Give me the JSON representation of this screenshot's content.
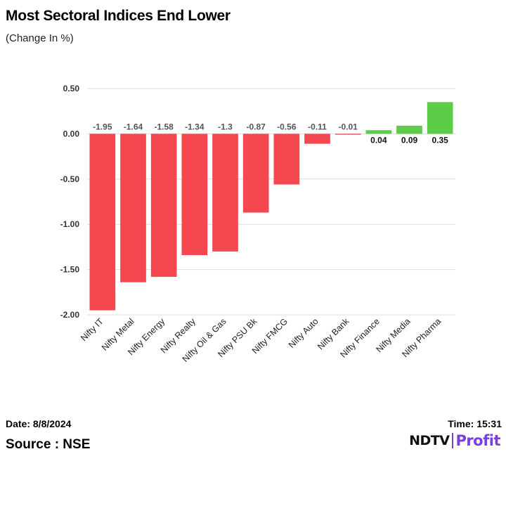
{
  "title": "Most Sectoral Indices End Lower",
  "subtitle": "(Change In %)",
  "footer": {
    "date": "Date: 8/8/2024",
    "time": "Time: 15:31",
    "source": "Source : NSE"
  },
  "logo": {
    "part1": "NDTV",
    "part2": "Profit"
  },
  "colors": {
    "negative": "#f5474f",
    "positive": "#5bcd48",
    "grid": "#dddddd",
    "accent": "#7b3fe0"
  },
  "chart_data": {
    "type": "bar",
    "title": "Most Sectoral Indices End Lower",
    "ylabel": "(Change In %)",
    "xlabel": "",
    "categories": [
      "Nifty IT",
      "Nifty Metal",
      "Nifty Energy",
      "Nifty Realty",
      "Nifty Oil & Gas",
      "Nifty PSU Bk",
      "Nifty FMCG",
      "Nifty Auto",
      "Nifty Bank",
      "Nifty Finance",
      "Nifty Media",
      "Nifty Pharma"
    ],
    "values": [
      -1.95,
      -1.64,
      -1.58,
      -1.34,
      -1.3,
      -0.87,
      -0.56,
      -0.11,
      -0.01,
      0.04,
      0.09,
      0.35
    ],
    "value_labels": [
      "-1.95",
      "-1.64",
      "-1.58",
      "-1.34",
      "-1.3",
      "-0.87",
      "-0.56",
      "-0.11",
      "-0.01",
      "0.04",
      "0.09",
      "0.35"
    ],
    "yticks": [
      0.5,
      0,
      -0.5,
      -1,
      -1.5,
      -2
    ],
    "ytick_labels": [
      "0.50",
      "0.00",
      "-0.50",
      "-1.00",
      "-1.50",
      "-2.00"
    ],
    "ylim": [
      -2.0,
      0.5
    ],
    "grid": true,
    "legend": "none"
  }
}
